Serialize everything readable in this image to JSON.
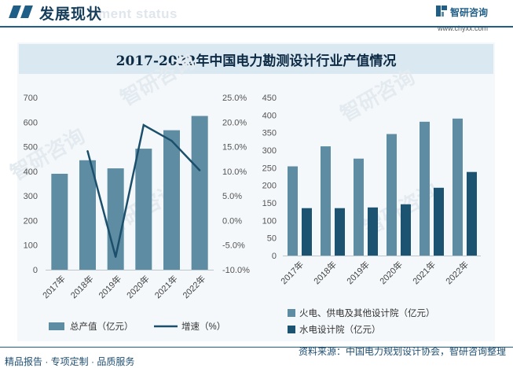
{
  "header": {
    "title": "发展现状",
    "ghost_text": "ment status",
    "brand_name": "智研咨询",
    "brand_url": "www.chyxx.com"
  },
  "footer": {
    "left_text": "精品报告 · 专项定制 · 品质服务",
    "source_text": "资料来源：中国电力规划设计协会，智研咨询整理"
  },
  "watermark_text": "智研咨询",
  "colors": {
    "bar_total": "#5e8da3",
    "line_growth": "#1b4f6b",
    "bar_thermal": "#5e8da3",
    "bar_hydro": "#1c5370",
    "accent": "#1f5f87"
  },
  "chart_data": [
    {
      "type": "bar",
      "title": "2017-2022年中国电力勘测设计行业产值情况",
      "categories": [
        "2017年",
        "2018年",
        "2019年",
        "2020年",
        "2021年",
        "2022年"
      ],
      "series": [
        {
          "name": "总产值（亿元）",
          "type": "bar",
          "axis": "left",
          "values": [
            390,
            445,
            412,
            492,
            567,
            625
          ]
        },
        {
          "name": "增速（%）",
          "type": "line",
          "axis": "right",
          "values": [
            null,
            14.1,
            -7.4,
            19.4,
            16.2,
            10.2
          ]
        }
      ],
      "left_axis": {
        "ticks": [
          "0",
          "100",
          "200",
          "300",
          "400",
          "500",
          "600",
          "700"
        ],
        "ylim": [
          0,
          700
        ]
      },
      "right_axis": {
        "ticks": [
          "-10.0%",
          "-5.0%",
          "0.0%",
          "5.0%",
          "10.0%",
          "15.0%",
          "20.0%",
          "25.0%"
        ],
        "ylim": [
          -10,
          25
        ]
      },
      "legend_position": "bottom"
    },
    {
      "type": "bar",
      "categories": [
        "2017年",
        "2018年",
        "2019年",
        "2020年",
        "2021年",
        "2022年"
      ],
      "series": [
        {
          "name": "火电、供电及其他设计院（亿元）",
          "values": [
            254,
            311,
            276,
            346,
            381,
            390
          ]
        },
        {
          "name": "水电设计院（亿元）",
          "values": [
            135,
            135,
            137,
            146,
            193,
            238
          ]
        }
      ],
      "axis": {
        "ticks": [
          "0",
          "50",
          "100",
          "150",
          "200",
          "250",
          "300",
          "350",
          "400",
          "450"
        ],
        "ylim": [
          0,
          450
        ]
      },
      "legend_position": "bottom"
    }
  ]
}
